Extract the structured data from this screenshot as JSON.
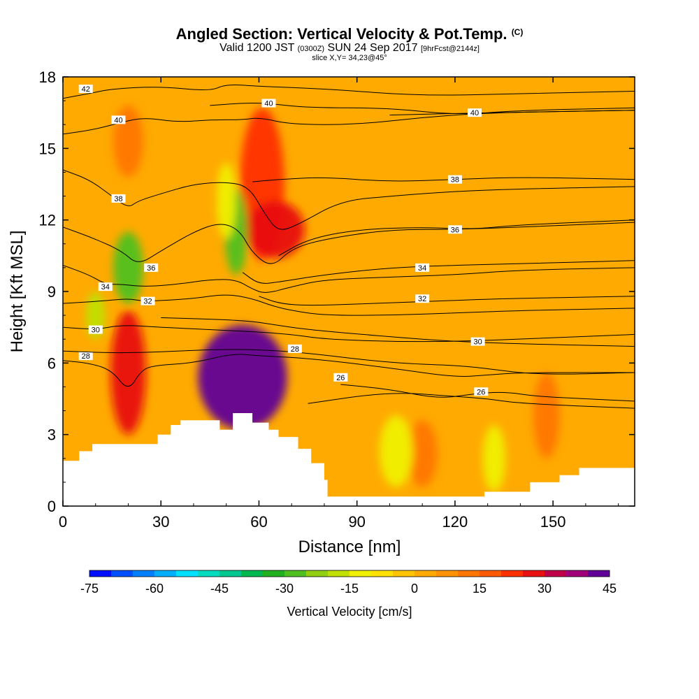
{
  "header": {
    "title_main": "Angled Section: Vertical Velocity & Pot.Temp.",
    "title_mark": "(C)",
    "sub_a": "Valid 1200 JST",
    "sub_b": "(0300Z)",
    "sub_c": "SUN 24 Sep 2017",
    "sub_d": "[9hrFcst@2144z]",
    "slice": "slice X,Y= 34,23@45°"
  },
  "chart_data": {
    "type": "heatmap",
    "title": "Angled Section: Vertical Velocity & Pot.Temp.",
    "xlabel": "Distance [nm]",
    "ylabel": "Height [Kft MSL]",
    "xlim": [
      0,
      175
    ],
    "ylim": [
      0,
      18
    ],
    "xticks": [
      0,
      30,
      60,
      90,
      120,
      150
    ],
    "yticks": [
      0,
      3,
      6,
      9,
      12,
      15,
      18
    ],
    "colorbar": {
      "label": "Vertical Velocity [cm/s]",
      "min": -75,
      "max": 45,
      "step": 5,
      "ticks": [
        -75,
        -60,
        -45,
        -30,
        -15,
        0,
        15,
        30,
        45
      ],
      "colors": [
        "#0010ff",
        "#0050ff",
        "#0080ff",
        "#00b0ff",
        "#00e0ff",
        "#00dcc0",
        "#00c890",
        "#00b850",
        "#20b020",
        "#50c020",
        "#90d010",
        "#c0e000",
        "#f0f000",
        "#ffe000",
        "#ffc400",
        "#ffaa00",
        "#ff9200",
        "#ff7600",
        "#ff5a00",
        "#ff3000",
        "#e81010",
        "#c0004a",
        "#a0007a",
        "#600098"
      ]
    },
    "terrain_kft": [
      [
        0,
        1.9
      ],
      [
        5,
        1.9
      ],
      [
        5,
        2.3
      ],
      [
        9,
        2.3
      ],
      [
        9,
        2.6
      ],
      [
        29,
        2.6
      ],
      [
        29,
        3.0
      ],
      [
        33,
        3.0
      ],
      [
        33,
        3.4
      ],
      [
        36,
        3.4
      ],
      [
        36,
        3.6
      ],
      [
        48,
        3.6
      ],
      [
        48,
        3.2
      ],
      [
        52,
        3.2
      ],
      [
        52,
        3.9
      ],
      [
        58,
        3.9
      ],
      [
        58,
        3.5
      ],
      [
        63,
        3.5
      ],
      [
        63,
        3.2
      ],
      [
        66,
        3.2
      ],
      [
        66,
        2.9
      ],
      [
        72,
        2.9
      ],
      [
        72,
        2.4
      ],
      [
        76,
        2.4
      ],
      [
        76,
        1.8
      ],
      [
        80,
        1.8
      ],
      [
        80,
        1.1
      ],
      [
        81,
        1.1
      ],
      [
        81,
        0.4
      ],
      [
        129,
        0.4
      ],
      [
        129,
        0.6
      ],
      [
        143,
        0.6
      ],
      [
        143,
        1.0
      ],
      [
        152,
        1.0
      ],
      [
        152,
        1.3
      ],
      [
        158,
        1.3
      ],
      [
        158,
        1.6
      ],
      [
        175,
        1.6
      ]
    ],
    "updrafts": [
      {
        "x": 20,
        "y": 5.6,
        "w": 15,
        "h_kft": 2.6,
        "value": 25
      },
      {
        "x": 55,
        "y": 5.4,
        "w": 45,
        "h_kft": 2.2,
        "value": 45
      },
      {
        "x": 61,
        "y": 13.5,
        "w": 20,
        "h_kft": 3.2,
        "value": 20
      },
      {
        "x": 65,
        "y": 11.6,
        "w": 28,
        "h_kft": 1.2,
        "value": 25
      },
      {
        "x": 20,
        "y": 15.3,
        "w": 12,
        "h_kft": 1.5,
        "value": 12
      },
      {
        "x": 110,
        "y": 2.2,
        "w": 12,
        "h_kft": 1.4,
        "value": 10
      },
      {
        "x": 148,
        "y": 3.8,
        "w": 10,
        "h_kft": 1.8,
        "value": 12
      }
    ],
    "downdrafts": [
      {
        "x": 20,
        "y": 10.0,
        "w": 12,
        "h_kft": 1.5,
        "value": -30
      },
      {
        "x": 10,
        "y": 8.0,
        "w": 6,
        "h_kft": 1.0,
        "value": -20
      },
      {
        "x": 53,
        "y": 11.5,
        "w": 8,
        "h_kft": 1.8,
        "value": -30
      },
      {
        "x": 50,
        "y": 12.8,
        "w": 6,
        "h_kft": 1.6,
        "value": -15
      },
      {
        "x": 102,
        "y": 2.3,
        "w": 14,
        "h_kft": 1.5,
        "value": -12
      },
      {
        "x": 132,
        "y": 2.0,
        "w": 8,
        "h_kft": 1.4,
        "value": -12
      }
    ],
    "theta_contours": [
      {
        "label": "26",
        "points": [
          [
            85,
            5.1
          ],
          [
            100,
            4.9
          ],
          [
            115,
            4.5
          ],
          [
            125,
            4.7
          ],
          [
            135,
            4.8
          ],
          [
            145,
            4.6
          ],
          [
            160,
            4.5
          ],
          [
            175,
            4.4
          ]
        ],
        "label_at": [
          85,
          5.4
        ]
      },
      {
        "label": "26",
        "points": [
          [
            75,
            4.3
          ],
          [
            100,
            4.8
          ],
          [
            120,
            4.6
          ],
          [
            130,
            4.5
          ],
          [
            140,
            4.3
          ],
          [
            175,
            4.1
          ]
        ],
        "label_at": [
          128,
          4.8
        ]
      },
      {
        "label": "28",
        "points": [
          [
            0,
            6.1
          ],
          [
            8,
            6.0
          ],
          [
            15,
            5.7
          ],
          [
            20,
            4.8
          ],
          [
            24,
            5.7
          ],
          [
            28,
            5.9
          ],
          [
            40,
            6.0
          ],
          [
            52,
            6.4
          ],
          [
            60,
            6.3
          ],
          [
            75,
            6.2
          ],
          [
            100,
            5.8
          ],
          [
            120,
            5.4
          ],
          [
            130,
            5.5
          ],
          [
            140,
            5.6
          ],
          [
            175,
            5.6
          ]
        ],
        "label_at": [
          7,
          6.3
        ]
      },
      {
        "label": "28",
        "points": [
          [
            0,
            6.5
          ],
          [
            20,
            6.4
          ],
          [
            50,
            6.6
          ],
          [
            70,
            6.5
          ],
          [
            100,
            6.0
          ],
          [
            120,
            5.9
          ],
          [
            128,
            5.8
          ],
          [
            145,
            5.5
          ],
          [
            175,
            5.6
          ]
        ],
        "label_at": [
          71,
          6.6
        ]
      },
      {
        "label": "30",
        "points": [
          [
            0,
            7.5
          ],
          [
            10,
            7.4
          ],
          [
            18,
            7.6
          ],
          [
            30,
            7.5
          ],
          [
            45,
            7.4
          ],
          [
            60,
            7.3
          ],
          [
            70,
            7.2
          ],
          [
            80,
            7.0
          ],
          [
            100,
            6.9
          ],
          [
            120,
            6.9
          ],
          [
            140,
            7.0
          ],
          [
            175,
            7.2
          ]
        ],
        "label_at": [
          10,
          7.4
        ]
      },
      {
        "label": "30",
        "points": [
          [
            30,
            7.9
          ],
          [
            55,
            7.8
          ],
          [
            65,
            7.6
          ],
          [
            75,
            7.4
          ],
          [
            100,
            7.1
          ],
          [
            120,
            6.9
          ],
          [
            140,
            6.8
          ],
          [
            175,
            6.7
          ]
        ],
        "label_at": [
          127,
          6.9
        ]
      },
      {
        "label": "32",
        "points": [
          [
            0,
            8.5
          ],
          [
            12,
            8.6
          ],
          [
            20,
            8.7
          ],
          [
            24,
            8.6
          ],
          [
            28,
            8.6
          ],
          [
            40,
            8.7
          ],
          [
            50,
            8.9
          ],
          [
            58,
            8.7
          ],
          [
            64,
            8.4
          ],
          [
            70,
            8.2
          ],
          [
            80,
            8.0
          ],
          [
            100,
            8.0
          ],
          [
            120,
            8.1
          ],
          [
            140,
            8.2
          ],
          [
            175,
            8.3
          ]
        ],
        "label_at": [
          26,
          8.6
        ]
      },
      {
        "label": "32",
        "points": [
          [
            60,
            8.8
          ],
          [
            66,
            8.5
          ],
          [
            75,
            8.4
          ],
          [
            95,
            8.5
          ],
          [
            115,
            8.6
          ],
          [
            135,
            8.7
          ],
          [
            175,
            8.8
          ]
        ],
        "label_at": [
          110,
          8.7
        ]
      },
      {
        "label": "34",
        "points": [
          [
            0,
            10.1
          ],
          [
            8,
            9.7
          ],
          [
            13,
            9.3
          ],
          [
            18,
            9.3
          ],
          [
            25,
            9.2
          ],
          [
            35,
            9.3
          ],
          [
            45,
            9.5
          ],
          [
            53,
            9.5
          ],
          [
            58,
            9.1
          ],
          [
            62,
            8.9
          ],
          [
            70,
            9.2
          ],
          [
            80,
            9.5
          ],
          [
            100,
            9.6
          ],
          [
            120,
            9.7
          ],
          [
            140,
            9.9
          ],
          [
            175,
            10.0
          ]
        ],
        "label_at": [
          13,
          9.2
        ]
      },
      {
        "label": "34",
        "points": [
          [
            55,
            9.8
          ],
          [
            60,
            9.3
          ],
          [
            66,
            9.4
          ],
          [
            80,
            9.7
          ],
          [
            100,
            10.0
          ],
          [
            120,
            10.1
          ],
          [
            150,
            10.2
          ],
          [
            175,
            10.3
          ]
        ],
        "label_at": [
          110,
          10.0
        ]
      },
      {
        "label": "36",
        "points": [
          [
            0,
            11.7
          ],
          [
            10,
            11.2
          ],
          [
            18,
            10.7
          ],
          [
            23,
            10.1
          ],
          [
            30,
            10.7
          ],
          [
            40,
            11.5
          ],
          [
            48,
            11.9
          ],
          [
            54,
            11.6
          ],
          [
            58,
            10.6
          ],
          [
            64,
            10.0
          ],
          [
            70,
            10.8
          ],
          [
            80,
            11.2
          ],
          [
            100,
            11.6
          ],
          [
            120,
            11.6
          ],
          [
            140,
            11.7
          ],
          [
            175,
            11.9
          ]
        ],
        "label_at": [
          27,
          10.0
        ]
      },
      {
        "label": "36",
        "points": [
          [
            66,
            10.5
          ],
          [
            75,
            11.2
          ],
          [
            90,
            11.6
          ],
          [
            110,
            11.7
          ],
          [
            125,
            11.6
          ],
          [
            140,
            11.8
          ],
          [
            175,
            12.0
          ]
        ],
        "label_at": [
          120,
          11.6
        ]
      },
      {
        "label": "38",
        "points": [
          [
            0,
            14.1
          ],
          [
            8,
            13.7
          ],
          [
            15,
            13.0
          ],
          [
            20,
            12.5
          ],
          [
            23,
            12.8
          ],
          [
            30,
            13.1
          ],
          [
            40,
            13.5
          ],
          [
            50,
            13.6
          ],
          [
            57,
            13.4
          ],
          [
            62,
            12.2
          ],
          [
            66,
            11.5
          ],
          [
            72,
            11.8
          ],
          [
            85,
            12.8
          ],
          [
            100,
            13.0
          ],
          [
            120,
            13.2
          ],
          [
            140,
            13.3
          ],
          [
            175,
            13.4
          ]
        ],
        "label_at": [
          17,
          12.9
        ]
      },
      {
        "label": "38",
        "points": [
          [
            58,
            13.6
          ],
          [
            66,
            13.7
          ],
          [
            80,
            13.8
          ],
          [
            100,
            13.6
          ],
          [
            120,
            13.7
          ],
          [
            140,
            13.8
          ],
          [
            175,
            13.7
          ]
        ],
        "label_at": [
          120,
          13.7
        ]
      },
      {
        "label": "40",
        "points": [
          [
            0,
            15.6
          ],
          [
            10,
            15.8
          ],
          [
            18,
            16.1
          ],
          [
            25,
            16.3
          ],
          [
            35,
            16.1
          ],
          [
            45,
            16.2
          ],
          [
            55,
            16.2
          ],
          [
            60,
            16.3
          ],
          [
            70,
            16.0
          ],
          [
            90,
            16.0
          ],
          [
            110,
            16.3
          ],
          [
            130,
            16.5
          ],
          [
            175,
            16.6
          ]
        ],
        "label_at": [
          17,
          16.2
        ]
      },
      {
        "label": "40",
        "points": [
          [
            45,
            16.8
          ],
          [
            55,
            16.9
          ],
          [
            62,
            16.9
          ],
          [
            75,
            16.7
          ],
          [
            100,
            16.7
          ],
          [
            120,
            16.4
          ],
          [
            140,
            16.6
          ],
          [
            175,
            16.7
          ]
        ],
        "label_at": [
          63,
          16.9
        ]
      },
      {
        "label": "40",
        "points": [
          [
            100,
            16.4
          ],
          [
            130,
            16.5
          ],
          [
            175,
            16.6
          ]
        ],
        "label_at": [
          126,
          16.5
        ]
      },
      {
        "label": "42",
        "points": [
          [
            0,
            17.1
          ],
          [
            8,
            17.3
          ],
          [
            15,
            17.5
          ],
          [
            30,
            17.6
          ],
          [
            45,
            17.4
          ],
          [
            50,
            17.7
          ],
          [
            60,
            17.6
          ],
          [
            80,
            17.5
          ],
          [
            110,
            17.2
          ],
          [
            140,
            17.3
          ],
          [
            175,
            17.4
          ]
        ],
        "label_at": [
          7,
          17.5
        ]
      }
    ]
  }
}
